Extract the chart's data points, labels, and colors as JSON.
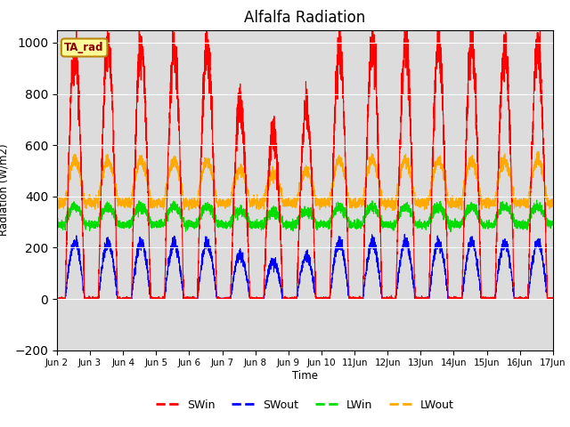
{
  "title": "Alfalfa Radiation",
  "ylabel": "Radiation (W/m2)",
  "xlabel": "Time",
  "annotation": "TA_rad",
  "ylim": [
    -200,
    1050
  ],
  "yticks": [
    -200,
    0,
    200,
    400,
    600,
    800,
    1000
  ],
  "xlim": [
    2,
    17
  ],
  "colors": {
    "SWin": "#ff0000",
    "SWout": "#0000ff",
    "LWin": "#00dd00",
    "LWout": "#ffaa00"
  },
  "background_color": "#dcdcdc",
  "grid_color": "#ffffff",
  "n_days": 15,
  "points_per_day": 288,
  "day_start": 2,
  "cloud_days": {
    "7": 0.78,
    "8": 0.67,
    "9": 0.75
  },
  "peak_swout": 220,
  "lwin_base": 300,
  "lwout_base": 380
}
